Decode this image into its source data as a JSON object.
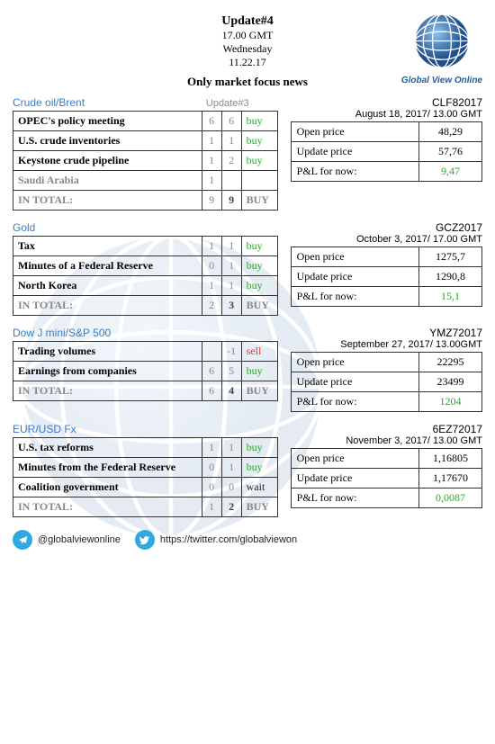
{
  "header": {
    "title": "Update#4",
    "time": "17.00 GMT",
    "day": "Wednesday",
    "date": "11.22.17",
    "subtitle": "Only market focus news",
    "brand": "Global View Online"
  },
  "update3_label": "Update#3",
  "sections": [
    {
      "title": "Crude oil/Brent",
      "show_update3": true,
      "rows": [
        {
          "label": "OPEC's policy meeting",
          "prev": "6",
          "now": "6",
          "sig": "buy",
          "sig_class": "sig-buy"
        },
        {
          "label": "U.S. crude inventories",
          "prev": "1",
          "now": "1",
          "sig": "buy",
          "sig_class": "sig-buy"
        },
        {
          "label": "Keystone crude pipeline",
          "prev": "1",
          "now": "2",
          "sig": "buy",
          "sig_class": "sig-buy"
        },
        {
          "label": "Saudi Arabia",
          "prev": "1",
          "now": "",
          "sig": "",
          "grey": true
        }
      ],
      "total": {
        "label": "IN TOTAL:",
        "prev": "9",
        "now": "9",
        "sig": "BUY",
        "sig_class": "sig-buy"
      },
      "quote": {
        "sym": "CLF82017",
        "date": "August 18, 2017/ 13.00 GMT",
        "open": "48,29",
        "update": "57,76",
        "pnl": "9,47"
      }
    },
    {
      "title": "Gold",
      "rows": [
        {
          "label": "Tax",
          "prev": "1",
          "now": "1",
          "sig": "buy",
          "sig_class": "sig-buy"
        },
        {
          "label": "Minutes of a Federal Reserve",
          "prev": "0",
          "now": "1",
          "sig": "buy",
          "sig_class": "sig-buy"
        },
        {
          "label": "North Korea",
          "prev": "1",
          "now": "1",
          "sig": "buy",
          "sig_class": "sig-buy"
        }
      ],
      "total": {
        "label": "IN TOTAL:",
        "prev": "2",
        "now": "3",
        "sig": "BUY",
        "sig_class": "sig-buy"
      },
      "quote": {
        "sym": "GCZ2017",
        "date": "October 3, 2017/ 17.00 GMT",
        "open": "1275,7",
        "update": "1290,8",
        "pnl": "15,1"
      }
    },
    {
      "title": "Dow J mini/S&P 500",
      "rows": [
        {
          "label": "Trading volumes",
          "prev": "",
          "now": "-1",
          "sig": "sell",
          "sig_class": "sig-sell"
        },
        {
          "label": "Earnings from companies",
          "prev": "6",
          "now": "5",
          "sig": "buy",
          "sig_class": "sig-buy"
        }
      ],
      "total": {
        "label": "IN TOTAL:",
        "prev": "6",
        "now": "4",
        "sig": "BUY",
        "sig_class": "sig-buy"
      },
      "quote": {
        "sym": "YMZ72017",
        "date": "September 27, 2017/ 13.00GMT",
        "open": "22295",
        "update": "23499",
        "pnl": "1204"
      }
    },
    {
      "title": "EUR/USD Fx",
      "rows": [
        {
          "label": "U.S. tax reforms",
          "prev": "1",
          "now": "1",
          "sig": "buy",
          "sig_class": "sig-buy"
        },
        {
          "label": "Minutes from the Federal Reserve",
          "prev": "0",
          "now": "1",
          "sig": "buy",
          "sig_class": "sig-buy"
        },
        {
          "label": "Coalition government",
          "prev": "0",
          "now": "0",
          "sig": "wait",
          "sig_class": "sig-wait"
        }
      ],
      "total": {
        "label": "IN TOTAL:",
        "prev": "1",
        "now": "2",
        "sig": "BUY",
        "sig_class": "sig-buy"
      },
      "quote": {
        "sym": "6EZ72017",
        "date": "November 3, 2017/ 13.00 GMT",
        "open": "1,16805",
        "update": "1,17670",
        "pnl": "0,0087"
      }
    }
  ],
  "labels": {
    "open": "Open price",
    "update": "Update price",
    "pnl": "P&L for now:"
  },
  "footer": {
    "telegram": "@globalviewonline",
    "twitter": "https://twitter.com/globalviewon"
  }
}
